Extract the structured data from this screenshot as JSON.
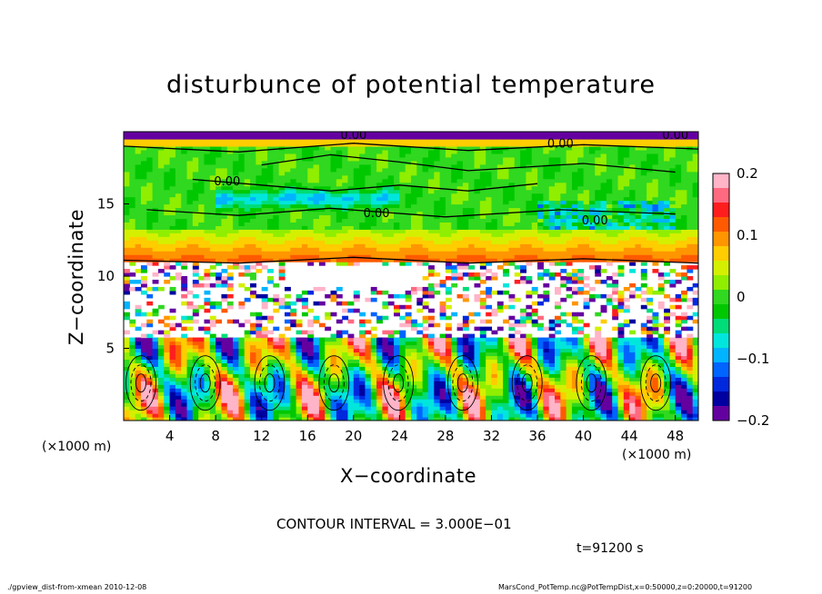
{
  "chart_data": {
    "type": "heatmap",
    "title": "disturbunce of potential temperature",
    "xlabel": "X−coordinate",
    "ylabel": "Z−coordinate",
    "x_unit_left": "(×1000 m)",
    "x_unit_right": "(×1000 m)",
    "xticks": [
      4,
      8,
      12,
      16,
      20,
      24,
      28,
      32,
      36,
      40,
      44,
      48
    ],
    "xlim": [
      0,
      50
    ],
    "yticks": [
      5,
      10,
      15
    ],
    "ylim": [
      0,
      20
    ],
    "colorbar": {
      "range": [
        -0.2,
        0.2
      ],
      "labels": [
        "0.2",
        "0.1",
        "0",
        "−0.1",
        "−0.2"
      ],
      "label_values": [
        0.2,
        0.1,
        0,
        -0.1,
        -0.2
      ],
      "colors": [
        "#ffb4c8",
        "#ff6a80",
        "#ff1e1e",
        "#ff5a00",
        "#ff9600",
        "#ffcd00",
        "#d4f000",
        "#90ee00",
        "#30d820",
        "#00c800",
        "#00dc78",
        "#00e6dc",
        "#00b4ff",
        "#0064ff",
        "#0028dc",
        "#0000a0",
        "#6400a0"
      ]
    },
    "contour_labels": [
      "0.00",
      "0.00",
      "0.00",
      "0.00",
      "0.00",
      "0.00"
    ],
    "contour_interval": "CONTOUR INTERVAL = 3.000E−01",
    "time": "t=91200 s"
  },
  "footer": {
    "left": "./gpview_dist-from-xmean 2010-12-08",
    "right": "MarsCond_PotTemp.nc@PotTempDist,x=0:50000,z=0:20000,t=91200"
  }
}
